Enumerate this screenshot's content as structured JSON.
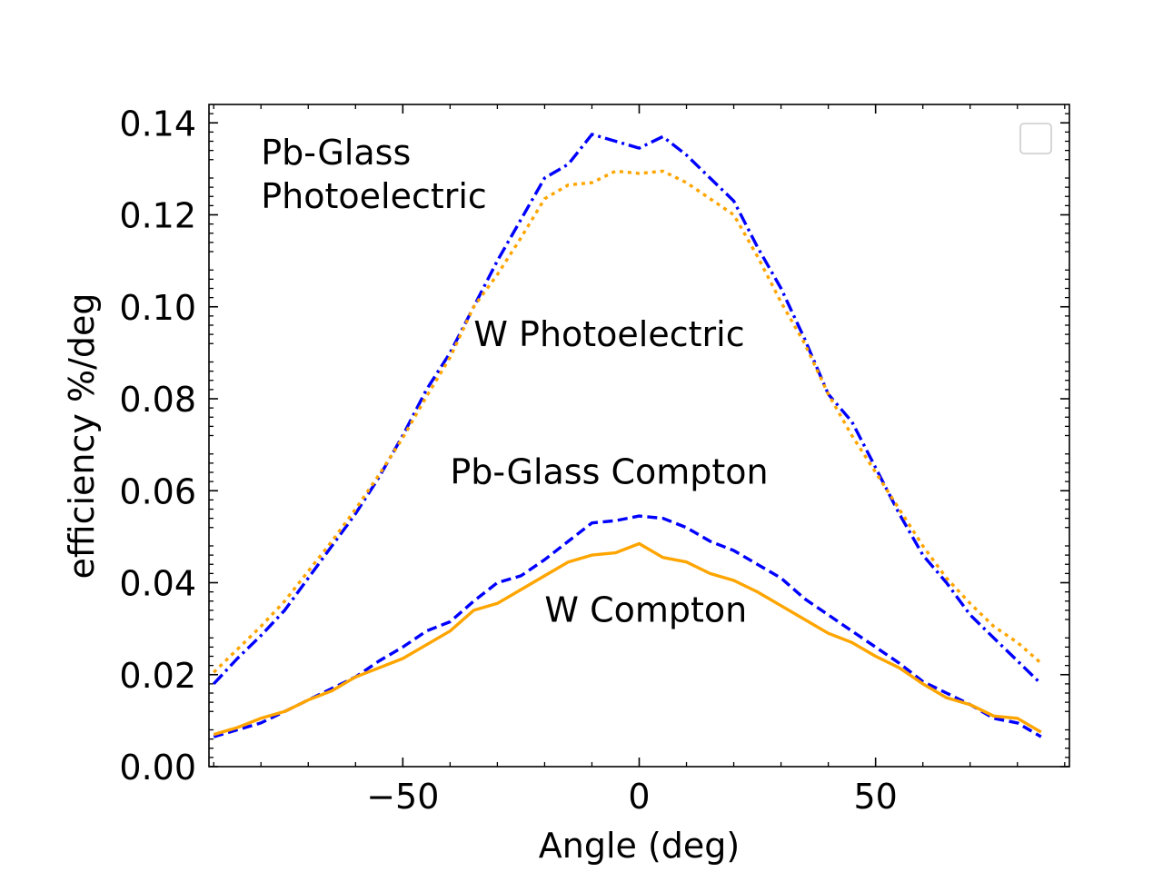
{
  "chart_data": {
    "type": "line",
    "title": "",
    "xlabel": "Angle (deg)",
    "ylabel": "efficiency %/deg",
    "xlim": [
      -91,
      91
    ],
    "ylim": [
      0.0,
      0.144
    ],
    "x_ticks": [
      -50,
      0,
      50
    ],
    "x_tick_labels": [
      "−50",
      "0",
      "50"
    ],
    "y_ticks": [
      0.0,
      0.02,
      0.04,
      0.06,
      0.08,
      0.1,
      0.12,
      0.14
    ],
    "y_tick_labels": [
      "0.00",
      "0.02",
      "0.04",
      "0.06",
      "0.08",
      "0.10",
      "0.12",
      "0.14"
    ],
    "grid": false,
    "legend": {
      "placement": "top-right",
      "entries": []
    },
    "annotations": [
      {
        "id": "pbglass-photo-l1",
        "text": "Pb-Glass",
        "x": -80,
        "y": 0.131
      },
      {
        "id": "pbglass-photo-l2",
        "text": "Photoelectric",
        "x": -80,
        "y": 0.1215
      },
      {
        "id": "w-photo",
        "text": "W Photoelectric",
        "x": -35,
        "y": 0.0915
      },
      {
        "id": "pbglass-compton",
        "text": "Pb-Glass Compton",
        "x": -40,
        "y": 0.0615
      },
      {
        "id": "w-compton",
        "text": "W Compton",
        "x": -20,
        "y": 0.0315
      }
    ],
    "series": [
      {
        "name": "Pb-Glass Photoelectric",
        "color": "#0000ff",
        "style": "dashdot",
        "x": [
          -90,
          -85,
          -80,
          -75,
          -70,
          -65,
          -60,
          -55,
          -50,
          -45,
          -40,
          -35,
          -30,
          -25,
          -20,
          -15,
          -10,
          -5,
          0,
          5,
          10,
          15,
          20,
          25,
          30,
          35,
          40,
          45,
          50,
          55,
          60,
          65,
          70,
          75,
          80,
          85
        ],
        "values": [
          0.018,
          0.0235,
          0.0285,
          0.034,
          0.041,
          0.048,
          0.055,
          0.063,
          0.072,
          0.082,
          0.09,
          0.1,
          0.11,
          0.119,
          0.128,
          0.131,
          0.1375,
          0.136,
          0.1345,
          0.137,
          0.133,
          0.128,
          0.123,
          0.113,
          0.104,
          0.093,
          0.081,
          0.075,
          0.065,
          0.055,
          0.046,
          0.04,
          0.033,
          0.028,
          0.023,
          0.018
        ]
      },
      {
        "name": "W Photoelectric",
        "color": "#ffa500",
        "style": "dotted",
        "x": [
          -90,
          -85,
          -80,
          -75,
          -70,
          -65,
          -60,
          -55,
          -50,
          -45,
          -40,
          -35,
          -30,
          -25,
          -20,
          -15,
          -10,
          -5,
          0,
          5,
          10,
          15,
          20,
          25,
          30,
          35,
          40,
          45,
          50,
          55,
          60,
          65,
          70,
          75,
          80,
          85
        ],
        "values": [
          0.0205,
          0.0255,
          0.0305,
          0.036,
          0.0425,
          0.049,
          0.056,
          0.0635,
          0.0715,
          0.0805,
          0.089,
          0.1,
          0.107,
          0.115,
          0.1235,
          0.1265,
          0.127,
          0.1295,
          0.129,
          0.1295,
          0.127,
          0.1235,
          0.12,
          0.111,
          0.101,
          0.092,
          0.081,
          0.072,
          0.064,
          0.056,
          0.048,
          0.041,
          0.0355,
          0.0305,
          0.027,
          0.0225
        ]
      },
      {
        "name": "Pb-Glass Compton",
        "color": "#0000ff",
        "style": "dashed",
        "x": [
          -90,
          -85,
          -80,
          -75,
          -70,
          -65,
          -60,
          -55,
          -50,
          -45,
          -40,
          -35,
          -30,
          -25,
          -20,
          -15,
          -10,
          -5,
          0,
          5,
          10,
          15,
          20,
          25,
          30,
          35,
          40,
          45,
          50,
          55,
          60,
          65,
          70,
          75,
          80,
          85
        ],
        "values": [
          0.0065,
          0.008,
          0.0095,
          0.012,
          0.0145,
          0.017,
          0.0195,
          0.023,
          0.026,
          0.0295,
          0.0315,
          0.036,
          0.04,
          0.0415,
          0.045,
          0.049,
          0.053,
          0.0535,
          0.0545,
          0.054,
          0.052,
          0.049,
          0.047,
          0.044,
          0.041,
          0.0365,
          0.033,
          0.0295,
          0.026,
          0.0225,
          0.0185,
          0.016,
          0.0135,
          0.0105,
          0.0095,
          0.0065
        ]
      },
      {
        "name": "W Compton",
        "color": "#ffa500",
        "style": "solid",
        "x": [
          -90,
          -85,
          -80,
          -75,
          -70,
          -65,
          -60,
          -55,
          -50,
          -45,
          -40,
          -35,
          -30,
          -25,
          -20,
          -15,
          -10,
          -5,
          0,
          5,
          10,
          15,
          20,
          25,
          30,
          35,
          40,
          45,
          50,
          55,
          60,
          65,
          70,
          75,
          80,
          85
        ],
        "values": [
          0.007,
          0.0085,
          0.0105,
          0.012,
          0.0145,
          0.0165,
          0.0195,
          0.0215,
          0.0235,
          0.0265,
          0.0295,
          0.034,
          0.0355,
          0.0385,
          0.0415,
          0.0445,
          0.046,
          0.0465,
          0.0485,
          0.0455,
          0.0445,
          0.042,
          0.0405,
          0.038,
          0.035,
          0.032,
          0.029,
          0.027,
          0.024,
          0.0215,
          0.018,
          0.015,
          0.0135,
          0.011,
          0.0105,
          0.0075
        ]
      }
    ]
  }
}
